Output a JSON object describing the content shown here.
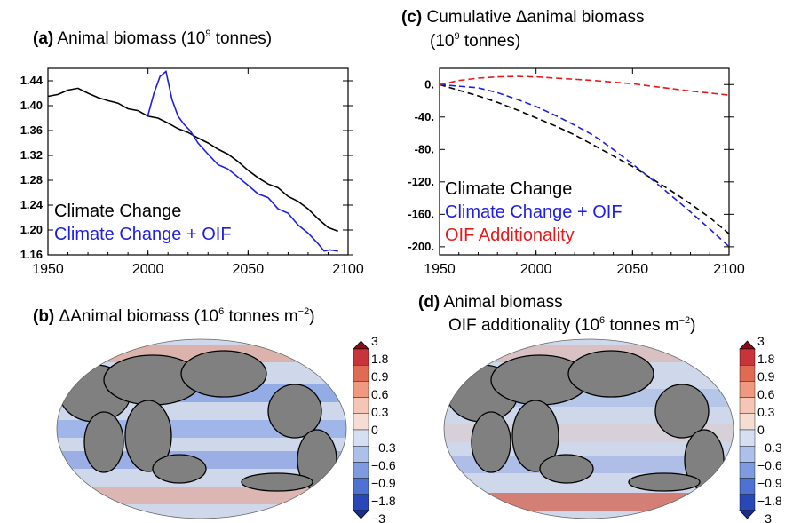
{
  "panels": {
    "a": {
      "letter": "(a)",
      "title": "Animal biomass (10",
      "sup": "9",
      "title_end": " tonnes)"
    },
    "b": {
      "letter": "(b)",
      "title": "ΔAnimal biomass (10",
      "sup": "6",
      "title_mid": " tonnes m",
      "sup2": "−2",
      "title_end": ")"
    },
    "c": {
      "letter": "(c)",
      "title": "Cumulative Δanimal biomass",
      "title_line2": "(10",
      "sup": "9",
      "title_end": " tonnes)"
    },
    "d": {
      "letter": "(d)",
      "title": "Animal biomass",
      "title_line2": "OIF additionality (10",
      "sup": "6",
      "title_mid": " tonnes m",
      "sup2": "−2",
      "title_end": ")"
    }
  },
  "chart_data": [
    {
      "id": "a",
      "type": "line",
      "title": "Animal biomass (10^9 tonnes)",
      "xlim": [
        1950,
        2100
      ],
      "ylim": [
        1.16,
        1.46
      ],
      "xticks": [
        "1950",
        "2000",
        "2050",
        "2100"
      ],
      "yticks": [
        "1.44",
        "1.40",
        "1.36",
        "1.32",
        "1.28",
        "1.24",
        "1.20",
        "1.16"
      ],
      "legend_placement": "bottom-left",
      "series": [
        {
          "name": "Climate Change",
          "color": "#000000",
          "x": [
            1950,
            1955,
            1960,
            1965,
            1970,
            1975,
            1980,
            1985,
            1990,
            1995,
            2000,
            2005,
            2010,
            2015,
            2020,
            2025,
            2030,
            2035,
            2040,
            2045,
            2050,
            2055,
            2060,
            2065,
            2070,
            2075,
            2080,
            2085,
            2090,
            2095
          ],
          "y": [
            1.415,
            1.418,
            1.425,
            1.428,
            1.42,
            1.413,
            1.408,
            1.404,
            1.395,
            1.392,
            1.383,
            1.38,
            1.372,
            1.363,
            1.357,
            1.348,
            1.34,
            1.33,
            1.322,
            1.31,
            1.296,
            1.284,
            1.274,
            1.268,
            1.254,
            1.246,
            1.234,
            1.218,
            1.204,
            1.198
          ]
        },
        {
          "name": "Climate Change + OIF",
          "color": "#1f1fe0",
          "x": [
            2000,
            2003,
            2006,
            2009,
            2012,
            2015,
            2018,
            2021,
            2025,
            2030,
            2035,
            2040,
            2045,
            2050,
            2055,
            2060,
            2065,
            2070,
            2075,
            2080,
            2085,
            2088,
            2091,
            2095
          ],
          "y": [
            1.385,
            1.42,
            1.447,
            1.455,
            1.41,
            1.383,
            1.37,
            1.36,
            1.34,
            1.322,
            1.305,
            1.298,
            1.285,
            1.272,
            1.258,
            1.252,
            1.234,
            1.227,
            1.208,
            1.195,
            1.178,
            1.166,
            1.168,
            1.166
          ]
        }
      ]
    },
    {
      "id": "c",
      "type": "line",
      "title": "Cumulative Δanimal biomass (10^9 tonnes)",
      "xlim": [
        1950,
        2100
      ],
      "ylim": [
        -210,
        20
      ],
      "xticks": [
        "1950",
        "2000",
        "2050",
        "2100"
      ],
      "yticks": [
        "0.",
        "-40.",
        "-80.",
        "-120.",
        "-160.",
        "-200."
      ],
      "legend_placement": "bottom-left",
      "series": [
        {
          "name": "Climate Change",
          "color": "#000000",
          "dash": true,
          "x": [
            1950,
            1960,
            1970,
            1980,
            1990,
            2000,
            2010,
            2020,
            2030,
            2040,
            2050,
            2060,
            2070,
            2080,
            2090,
            2100
          ],
          "y": [
            0,
            -7,
            -14,
            -22,
            -31,
            -41,
            -51,
            -62,
            -75,
            -88,
            -101,
            -116,
            -131,
            -147,
            -164,
            -184
          ]
        },
        {
          "name": "Climate Change + OIF",
          "color": "#1f1fe0",
          "dash": true,
          "x": [
            1950,
            1960,
            1970,
            1980,
            1990,
            2000,
            2010,
            2020,
            2030,
            2040,
            2050,
            2060,
            2070,
            2080,
            2090,
            2100
          ],
          "y": [
            0,
            -2,
            -4,
            -10,
            -18,
            -27,
            -38,
            -50,
            -63,
            -80,
            -98,
            -117,
            -137,
            -157,
            -178,
            -200
          ]
        },
        {
          "name": "OIF Additionality",
          "color": "#e41a1c",
          "dash": true,
          "x": [
            1950,
            1960,
            1970,
            1980,
            1990,
            2000,
            2010,
            2020,
            2030,
            2040,
            2050,
            2060,
            2070,
            2080,
            2090,
            2100
          ],
          "y": [
            0,
            5,
            8,
            9.5,
            10,
            9.5,
            8,
            6.5,
            5,
            3,
            1,
            -2,
            -5,
            -8,
            -10.5,
            -13
          ]
        }
      ]
    }
  ],
  "maps": {
    "b": {
      "colorbar_ticks": [
        "3",
        "1.8",
        "0.9",
        "0.6",
        "0.3",
        "0",
        "−0.3",
        "−0.6",
        "−0.9",
        "−1.8",
        "−3"
      ]
    },
    "d": {
      "colorbar_ticks": [
        "3",
        "1.8",
        "0.9",
        "0.6",
        "0.3",
        "0",
        "−0.3",
        "−0.6",
        "−0.9",
        "−1.8",
        "−3"
      ]
    },
    "colors": {
      "land": "#808080",
      "ocean": "#cfd8ea",
      "positive": "#b2182b",
      "negative": "#2c52c8",
      "coast": "#000000"
    }
  }
}
